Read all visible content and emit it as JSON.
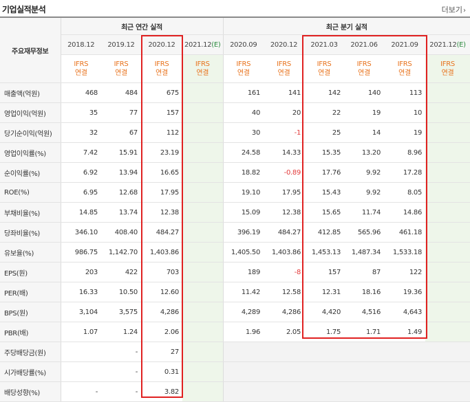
{
  "section_title": "기업실적분석",
  "more_label": "더보기",
  "more_icon": "chevron-right-icon",
  "header": {
    "row_label": "주요재무정보",
    "annual_group": "최근 연간 실적",
    "quarter_group": "최근 분기 실적",
    "annual_periods": [
      {
        "year": "2018.12",
        "est": ""
      },
      {
        "year": "2019.12",
        "est": ""
      },
      {
        "year": "2020.12",
        "est": ""
      },
      {
        "year": "2021.12",
        "est": "(E)"
      }
    ],
    "quarter_periods": [
      {
        "year": "2020.09",
        "est": ""
      },
      {
        "year": "2020.12",
        "est": ""
      },
      {
        "year": "2021.03",
        "est": ""
      },
      {
        "year": "2021.06",
        "est": ""
      },
      {
        "year": "2021.09",
        "est": ""
      },
      {
        "year": "2021.12",
        "est": "(E)"
      }
    ],
    "ifrs_line1": "IFRS",
    "ifrs_line2": "연결"
  },
  "rows": [
    {
      "label": "매출액(억원)",
      "values": [
        "468",
        "484",
        "675",
        "",
        "161",
        "141",
        "142",
        "140",
        "113",
        ""
      ]
    },
    {
      "label": "영업이익(억원)",
      "values": [
        "35",
        "77",
        "157",
        "",
        "40",
        "20",
        "22",
        "19",
        "10",
        ""
      ]
    },
    {
      "label": "당기순이익(억원)",
      "values": [
        "32",
        "67",
        "112",
        "",
        "30",
        "-1",
        "25",
        "14",
        "19",
        ""
      ]
    },
    {
      "label": "영업이익률(%)",
      "values": [
        "7.42",
        "15.91",
        "23.19",
        "",
        "24.58",
        "14.33",
        "15.35",
        "13.20",
        "8.96",
        ""
      ]
    },
    {
      "label": "순이익률(%)",
      "values": [
        "6.92",
        "13.94",
        "16.65",
        "",
        "18.82",
        "-0.89",
        "17.76",
        "9.92",
        "17.28",
        ""
      ]
    },
    {
      "label": "ROE(%)",
      "values": [
        "6.95",
        "12.68",
        "17.95",
        "",
        "19.10",
        "17.95",
        "15.43",
        "9.92",
        "8.05",
        ""
      ]
    },
    {
      "label": "부채비율(%)",
      "values": [
        "14.85",
        "13.74",
        "12.38",
        "",
        "15.09",
        "12.38",
        "15.65",
        "11.74",
        "14.86",
        ""
      ]
    },
    {
      "label": "당좌비율(%)",
      "values": [
        "346.10",
        "408.40",
        "484.27",
        "",
        "396.19",
        "484.27",
        "412.85",
        "565.96",
        "461.18",
        ""
      ]
    },
    {
      "label": "유보율(%)",
      "values": [
        "986.75",
        "1,142.70",
        "1,403.86",
        "",
        "1,405.50",
        "1,403.86",
        "1,453.13",
        "1,487.34",
        "1,533.18",
        ""
      ]
    },
    {
      "label": "EPS(원)",
      "values": [
        "203",
        "422",
        "703",
        "",
        "189",
        "-8",
        "157",
        "87",
        "122",
        ""
      ]
    },
    {
      "label": "PER(배)",
      "values": [
        "16.33",
        "10.50",
        "12.60",
        "",
        "11.42",
        "12.58",
        "12.31",
        "18.16",
        "19.36",
        ""
      ]
    },
    {
      "label": "BPS(원)",
      "values": [
        "3,104",
        "3,575",
        "4,286",
        "",
        "4,289",
        "4,286",
        "4,420",
        "4,516",
        "4,643",
        ""
      ]
    },
    {
      "label": "PBR(배)",
      "values": [
        "1.07",
        "1.24",
        "2.06",
        "",
        "1.96",
        "2.05",
        "1.75",
        "1.71",
        "1.49",
        ""
      ]
    },
    {
      "label": "주당배당금(원)",
      "values": [
        "",
        "-",
        "27",
        "",
        "",
        "",
        "",
        "",
        "",
        ""
      ]
    },
    {
      "label": "시가배당률(%)",
      "values": [
        "",
        "-",
        "0.31",
        "",
        "",
        "",
        "",
        "",
        "",
        ""
      ]
    },
    {
      "label": "배당성향(%)",
      "values": [
        "-",
        "-",
        "3.82",
        "",
        "",
        "",
        "",
        "",
        "",
        ""
      ]
    }
  ],
  "colors": {
    "estimate_year": "#2b8a3e",
    "negative": "#e23b3b",
    "ifrs": "#e8721c",
    "highlight_box": "#e02020"
  }
}
